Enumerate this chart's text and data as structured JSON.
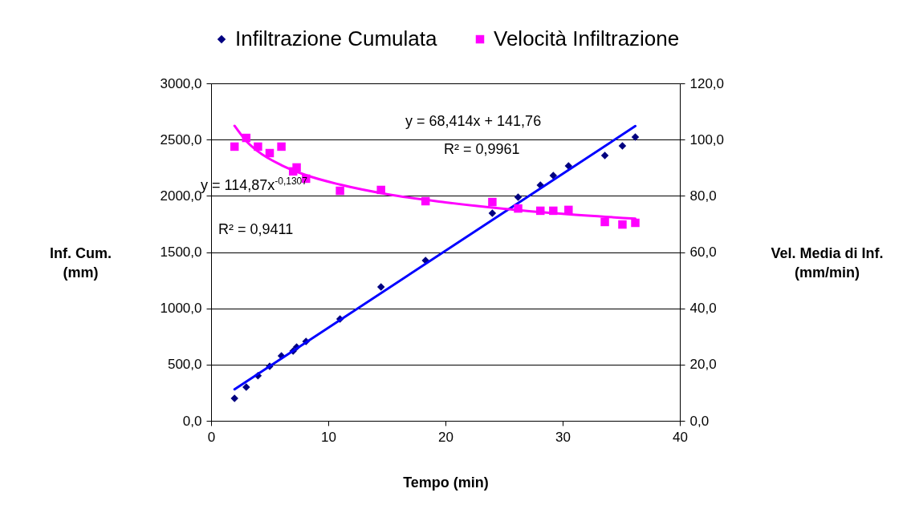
{
  "chart_data": {
    "type": "scatter",
    "xlabel": "Tempo (min)",
    "ylabel": "Inf. Cum.\n(mm)",
    "y2label": "Vel. Media di Inf.\n(mm/min)",
    "xlim": [
      0,
      40
    ],
    "xticks": [
      0,
      10,
      20,
      30,
      40
    ],
    "ylim": [
      0,
      3000
    ],
    "yticks": [
      {
        "value": 0,
        "label": "0,0"
      },
      {
        "value": 500,
        "label": "500,0"
      },
      {
        "value": 1000,
        "label": "1000,0"
      },
      {
        "value": 1500,
        "label": "1500,0"
      },
      {
        "value": 2000,
        "label": "2000,0"
      },
      {
        "value": 2500,
        "label": "2500,0"
      },
      {
        "value": 3000,
        "label": "3000,0"
      }
    ],
    "y2lim": [
      0,
      120
    ],
    "y2ticks": [
      {
        "value": 0,
        "label": "0,0"
      },
      {
        "value": 20,
        "label": "20,0"
      },
      {
        "value": 40,
        "label": "40,0"
      },
      {
        "value": 60,
        "label": "60,0"
      },
      {
        "value": 80,
        "label": "80,0"
      },
      {
        "value": 100,
        "label": "100,0"
      },
      {
        "value": 120,
        "label": "120,0"
      }
    ],
    "grid": "y",
    "legend": "top",
    "series": [
      {
        "name": "Infiltrazione Cumulata",
        "marker": "diamond",
        "color": "#000080",
        "x": [
          2,
          3,
          4,
          5,
          6,
          7,
          7.3,
          8.1,
          11,
          14.5,
          18.3,
          24,
          26.2,
          28.1,
          29.2,
          30.5,
          33.6,
          35.1,
          36.2
        ],
        "values": [
          200,
          300,
          400,
          485,
          577,
          620,
          655,
          705,
          905,
          1190,
          1425,
          1846,
          1988,
          2095,
          2181,
          2266,
          2359,
          2444,
          2523
        ]
      },
      {
        "name": "Velocità Infiltrazione",
        "marker": "square",
        "axis": "y2",
        "color": "#ff00ff",
        "x": [
          2,
          3,
          4,
          5,
          6,
          7,
          7.3,
          8.1,
          11,
          14.5,
          18.3,
          24,
          26.2,
          28.1,
          29.2,
          30.5,
          33.6,
          35.1,
          36.2
        ],
        "values": [
          97.5,
          100.6,
          97.5,
          95.2,
          97.5,
          88.7,
          90.1,
          86.1,
          81.8,
          82.1,
          78.1,
          77.8,
          75.5,
          74.7,
          74.7,
          75.0,
          70.7,
          69.8,
          70.4
        ]
      },
      {
        "type": "line",
        "color": "#0000ff",
        "x": [
          2,
          36.2
        ],
        "values": [
          280,
          2620
        ]
      },
      {
        "type": "line",
        "axis": "y2",
        "color": "#ff00ff",
        "x": [
          2,
          3,
          4,
          6,
          8,
          11,
          15,
          20,
          25,
          30,
          36.2
        ],
        "values": [
          104.9,
          99.5,
          95.8,
          90.9,
          87.5,
          84.0,
          80.6,
          77.7,
          75.4,
          73.6,
          71.9
        ]
      }
    ],
    "annotations": [
      "y = 114,87x$^{-0,1307}$",
      "R² = 0,9411",
      "y = 68,414x + 141,76",
      "R² = 0,9961"
    ]
  }
}
